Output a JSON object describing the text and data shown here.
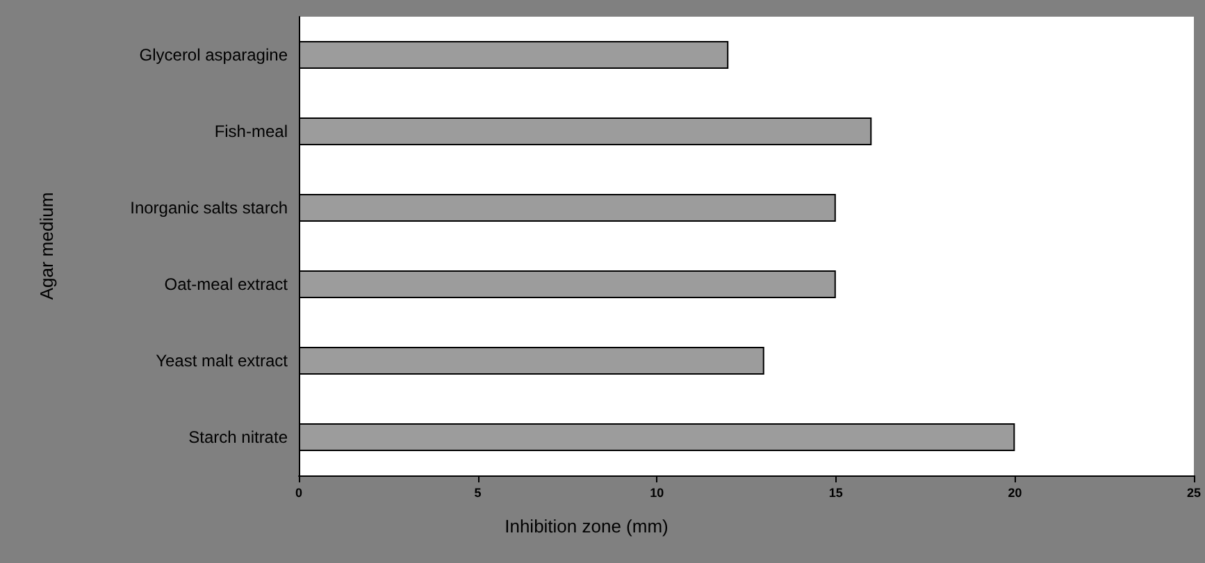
{
  "chart_data": {
    "type": "bar",
    "orientation": "horizontal",
    "xlabel": "Inhibition zone (mm)",
    "ylabel": "Agar medium",
    "categories": [
      "Glycerol asparagine",
      "Fish-meal",
      "Inorganic salts starch",
      "Oat-meal extract",
      "Yeast malt extract",
      "Starch nitrate"
    ],
    "values": [
      12,
      16,
      15,
      15,
      13,
      20
    ],
    "color": "#9c9c9c",
    "xlim": [
      0,
      25
    ],
    "xticks": [
      0,
      5,
      10,
      15,
      20,
      25
    ]
  }
}
